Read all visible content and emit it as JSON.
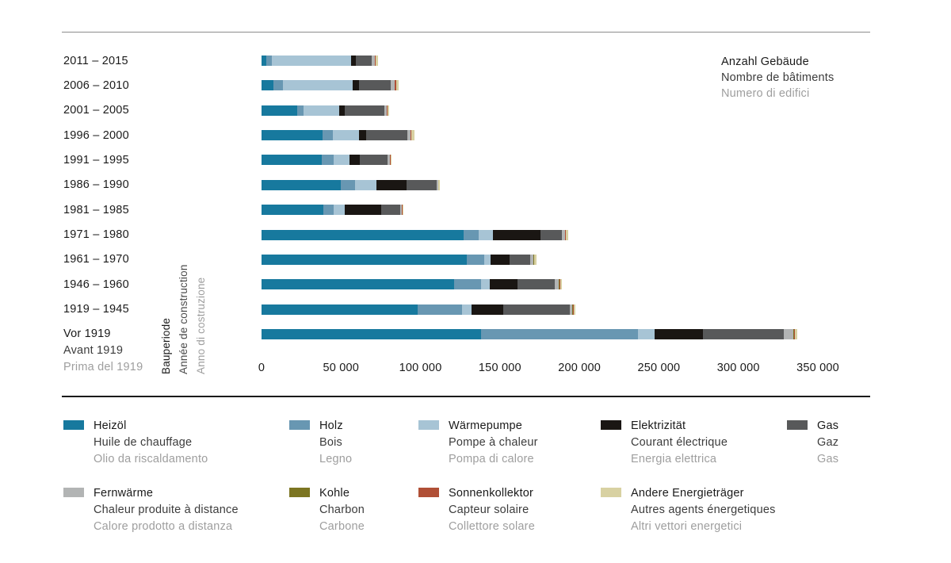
{
  "header": {
    "title_de": "Anzahl Gebäude",
    "title_fr": "Nombre de bâtiments",
    "title_it": "Numero di edifici"
  },
  "axis": {
    "x_ticks": [
      "0",
      "50 000",
      "100 000",
      "150 000",
      "200 000",
      "250 000",
      "300 000",
      "350 000"
    ],
    "x_min": 0,
    "x_max": 350000,
    "y_label_de": "Bauperiode",
    "y_label_fr": "Année de construction",
    "y_label_it": "Anno di costruzione"
  },
  "chart_data": {
    "type": "bar",
    "orientation": "horizontal",
    "stacked": true,
    "title": "Anzahl Gebäude / Nombre de bâtiments / Numero di edifici",
    "xlabel": "Anzahl Gebäude",
    "ylabel": "Bauperiode",
    "xlim": [
      0,
      350000
    ],
    "grid": false,
    "legend_position": "bottom",
    "categories": [
      {
        "de": "2011 – 2015"
      },
      {
        "de": "2006 – 2010"
      },
      {
        "de": "2001 – 2005"
      },
      {
        "de": "1996 – 2000"
      },
      {
        "de": "1991 – 1995"
      },
      {
        "de": "1986 – 1990"
      },
      {
        "de": "1981 – 1985"
      },
      {
        "de": "1971 – 1980"
      },
      {
        "de": "1961 – 1970"
      },
      {
        "de": "1946 – 1960"
      },
      {
        "de": "1919 – 1945"
      },
      {
        "de": "Vor 1919",
        "fr": "Avant 1919",
        "it": "Prima del 1919"
      }
    ],
    "series": [
      {
        "name": "Heizöl",
        "slug": "heizoel",
        "color": "#17799e",
        "values": [
          3000,
          7500,
          22500,
          38500,
          38000,
          50000,
          39000,
          127000,
          129000,
          121000,
          98000,
          138000
        ]
      },
      {
        "name": "Holz",
        "slug": "holz",
        "color": "#6897b2",
        "values": [
          3500,
          6000,
          4000,
          6500,
          7500,
          9000,
          6500,
          9500,
          11000,
          17000,
          28000,
          99000
        ]
      },
      {
        "name": "Wärmepumpe",
        "slug": "waermepumpe",
        "color": "#a7c4d5",
        "values": [
          50000,
          44000,
          22500,
          16500,
          10000,
          13500,
          7000,
          9000,
          4000,
          5500,
          6000,
          10500
        ]
      },
      {
        "name": "Elektrizität",
        "slug": "elektrizitaet",
        "color": "#1a1613",
        "values": [
          3000,
          4000,
          3500,
          4500,
          6500,
          19000,
          23000,
          30000,
          12000,
          17500,
          20000,
          30000
        ]
      },
      {
        "name": "Gas",
        "slug": "gas",
        "color": "#58595a",
        "values": [
          10000,
          20000,
          25000,
          25500,
          17500,
          18500,
          12000,
          13500,
          13000,
          23500,
          42000,
          51000
        ]
      },
      {
        "name": "Fernwärme",
        "slug": "fernwaerme",
        "color": "#b2b4b4",
        "values": [
          2000,
          2500,
          1500,
          2000,
          1500,
          1000,
          1000,
          2000,
          2000,
          2500,
          1500,
          6000
        ]
      },
      {
        "name": "Kohle",
        "slug": "kohle",
        "color": "#7c7522",
        "values": [
          0,
          0,
          0,
          0,
          0,
          0,
          0,
          200,
          300,
          500,
          500,
          500
        ]
      },
      {
        "name": "Sonnenkollektor",
        "slug": "sonnenkollektor",
        "color": "#b04f36",
        "values": [
          500,
          1000,
          300,
          500,
          300,
          300,
          300,
          300,
          300,
          300,
          300,
          500
        ]
      },
      {
        "name": "Andere Energieträger",
        "slug": "andere-energietraeger",
        "color": "#d8d1a2",
        "values": [
          1500,
          1500,
          1000,
          2000,
          700,
          700,
          700,
          1500,
          1400,
          1200,
          1200,
          1500
        ]
      }
    ]
  },
  "legend": {
    "rows": [
      [
        {
          "slug": "heizoel",
          "color": "#17799e",
          "de": "Heizöl",
          "fr": "Huile de chauffage",
          "it": "Olio da riscaldamento"
        },
        {
          "slug": "holz",
          "color": "#6897b2",
          "de": "Holz",
          "fr": "Bois",
          "it": "Legno"
        },
        {
          "slug": "waermepumpe",
          "color": "#a7c4d5",
          "de": "Wärmepumpe",
          "fr": "Pompe à chaleur",
          "it": "Pompa di calore"
        },
        {
          "slug": "elektrizitaet",
          "color": "#1a1613",
          "de": "Elektrizität",
          "fr": "Courant électrique",
          "it": "Energia elettrica"
        },
        {
          "slug": "gas",
          "color": "#58595a",
          "de": "Gas",
          "fr": "Gaz",
          "it": "Gas"
        }
      ],
      [
        {
          "slug": "fernwaerme",
          "color": "#b2b4b4",
          "de": "Fernwärme",
          "fr": "Chaleur produite à distance",
          "it": "Calore prodotto a distanza"
        },
        {
          "slug": "kohle",
          "color": "#7c7522",
          "de": "Kohle",
          "fr": "Charbon",
          "it": "Carbone"
        },
        {
          "slug": "sonnenkollektor",
          "color": "#b04f36",
          "de": "Sonnenkollektor",
          "fr": "Capteur solaire",
          "it": "Collettore solare"
        },
        {
          "slug": "andere-energietraeger",
          "color": "#d8d1a2",
          "de": "Andere Energieträger",
          "fr": "Autres agents énergetiques",
          "it": "Altri vettori energetici"
        }
      ]
    ]
  }
}
